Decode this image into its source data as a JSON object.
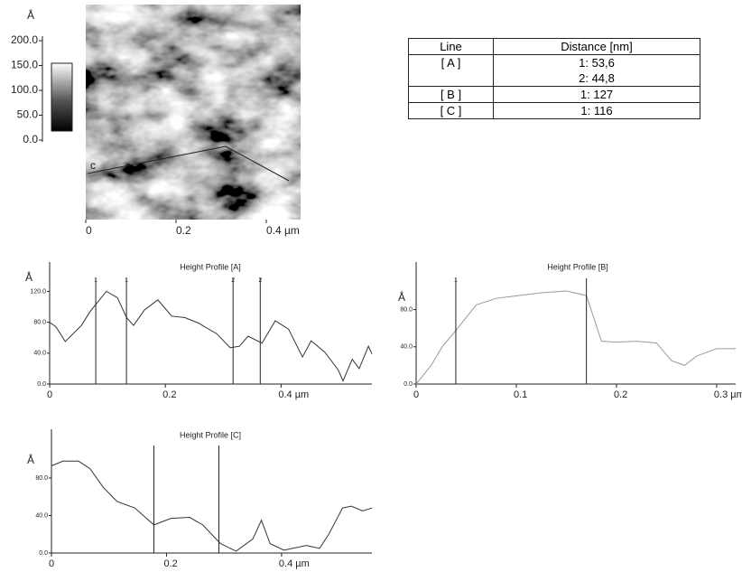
{
  "chart_data": [
    {
      "type": "image",
      "colorbar_label": "Å",
      "colorbar_lim": [
        0,
        200
      ],
      "colorbar_ticks": [
        {
          "value": 200,
          "label": "200.0"
        },
        {
          "value": 150,
          "label": "150.0"
        },
        {
          "value": 100,
          "label": "100.0"
        },
        {
          "value": 50,
          "label": "50.0"
        },
        {
          "value": 0,
          "label": "0.0"
        }
      ],
      "xlim": [
        0,
        0.476
      ],
      "xticks": [
        0,
        0.2,
        {
          "value": 0.4,
          "label": "0.4 µm"
        }
      ],
      "line_label": "c"
    },
    {
      "type": "line",
      "title": "Height Profile [A]",
      "y_label": "Å",
      "color": "#333333",
      "x": [
        0,
        0.011,
        0.027,
        0.055,
        0.07,
        0.098,
        0.117,
        0.133,
        0.145,
        0.164,
        0.187,
        0.211,
        0.234,
        0.257,
        0.289,
        0.312,
        0.328,
        0.343,
        0.367,
        0.39,
        0.413,
        0.437,
        0.452,
        0.476,
        0.499,
        0.507,
        0.523,
        0.535,
        0.551,
        0.557
      ],
      "values": [
        80,
        74,
        55,
        76,
        94,
        120,
        112,
        86,
        76,
        96,
        109,
        88,
        86,
        79,
        65,
        47,
        49,
        62,
        53,
        82,
        71,
        35,
        56,
        41,
        18,
        4,
        32,
        20,
        49,
        39
      ],
      "xlim": [
        0,
        0.557
      ],
      "ylim": [
        0,
        158
      ],
      "xticks": [
        0,
        0.2,
        {
          "value": 0.4,
          "label": "0.4 µm"
        }
      ],
      "yticks": [
        {
          "value": 0,
          "label": "0.0"
        },
        {
          "value": 40,
          "label": "40.0"
        },
        {
          "value": 80,
          "label": "80.0"
        },
        {
          "value": 120,
          "label": "120.0"
        }
      ],
      "cursors": [
        {
          "x": 0.0797,
          "label": "1"
        },
        {
          "x": 0.1328,
          "label": "1"
        },
        {
          "x": 0.317,
          "label": "2"
        },
        {
          "x": 0.364,
          "label": "2"
        }
      ]
    },
    {
      "type": "line",
      "title": "Height Profile [B]",
      "y_label": "Å",
      "color": "#999999",
      "x": [
        0,
        0.015,
        0.026,
        0.04,
        0.06,
        0.08,
        0.102,
        0.125,
        0.15,
        0.17,
        0.185,
        0.2,
        0.22,
        0.24,
        0.255,
        0.268,
        0.28,
        0.3,
        0.319
      ],
      "values": [
        0,
        20,
        40,
        58,
        85,
        92,
        95,
        98,
        100,
        95,
        46,
        45,
        46,
        44,
        25,
        20,
        30,
        38,
        38
      ],
      "xlim": [
        0,
        0.319
      ],
      "ylim": [
        0,
        131
      ],
      "xticks": [
        0,
        0.1,
        0.2,
        {
          "value": 0.3,
          "label": "0.3 µm"
        }
      ],
      "yticks": [
        {
          "value": 0,
          "label": "0.0"
        },
        {
          "value": 40,
          "label": "40.0"
        },
        {
          "value": 80,
          "label": "80.0"
        }
      ],
      "cursors": [
        {
          "x": 0.0396,
          "label": "1"
        },
        {
          "x": 0.17
        }
      ]
    },
    {
      "type": "line",
      "title": "Height Profile [C]",
      "y_label": "Å",
      "color": "#333333",
      "x": [
        0,
        0.02,
        0.047,
        0.067,
        0.09,
        0.114,
        0.145,
        0.178,
        0.208,
        0.24,
        0.263,
        0.294,
        0.321,
        0.35,
        0.365,
        0.38,
        0.404,
        0.443,
        0.466,
        0.482,
        0.506,
        0.521,
        0.541,
        0.557
      ],
      "values": [
        93,
        98,
        98,
        90,
        70,
        55,
        48,
        30,
        37,
        38,
        30,
        10,
        2,
        15,
        35,
        10,
        3,
        8,
        5,
        20,
        48,
        50,
        45,
        48
      ],
      "xlim": [
        0,
        0.557
      ],
      "ylim": [
        0,
        132
      ],
      "xticks": [
        0,
        0.2,
        {
          "value": 0.4,
          "label": "0.4 µm"
        }
      ],
      "yticks": [
        {
          "value": 0,
          "label": "0.0"
        },
        {
          "value": 40,
          "label": "40.0"
        },
        {
          "value": 80,
          "label": "80.0"
        }
      ],
      "cursors": [
        {
          "x": 0.178
        },
        {
          "x": 0.291
        }
      ]
    }
  ],
  "table": {
    "header": [
      "Line",
      "Distance [nm]"
    ],
    "rows": [
      [
        "[ A ]",
        [
          "1:  53,6",
          "2:  44,8"
        ]
      ],
      [
        "[ B ]",
        [
          "1:  127"
        ]
      ],
      [
        "[ C ]",
        [
          "1:  116"
        ]
      ]
    ]
  }
}
